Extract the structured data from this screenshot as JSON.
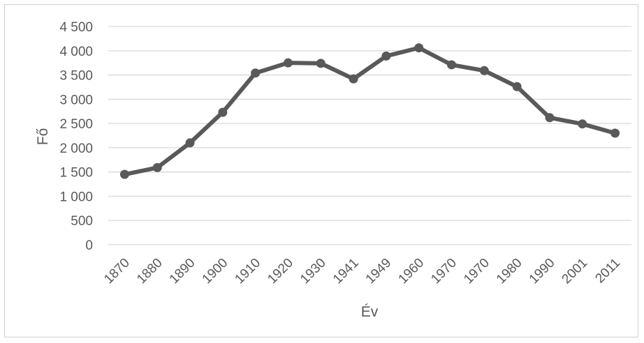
{
  "chart_data": {
    "type": "line",
    "categories": [
      "1870",
      "1880",
      "1890",
      "1900",
      "1910",
      "1920",
      "1930",
      "1941",
      "1949",
      "1960",
      "1970",
      "1970",
      "1980",
      "1990",
      "2001",
      "2011"
    ],
    "series": [
      {
        "values": [
          1450,
          1590,
          2100,
          2730,
          3540,
          3750,
          3740,
          3420,
          3890,
          4060,
          3710,
          3590,
          3260,
          2620,
          2490,
          2300
        ]
      }
    ],
    "xlabel": "Év",
    "ylabel": "Fő",
    "ylim": [
      0,
      4500
    ],
    "yticks": [
      0,
      500,
      1000,
      1500,
      2000,
      2500,
      3000,
      3500,
      4000,
      4500
    ],
    "ytick_labels": [
      "0",
      "500",
      "1 000",
      "1 500",
      "2 000",
      "2 500",
      "3 000",
      "3 500",
      "4 000",
      "4 500"
    ],
    "grid": true,
    "line_color": "#595959",
    "grid_color": "#d9d9d9"
  }
}
